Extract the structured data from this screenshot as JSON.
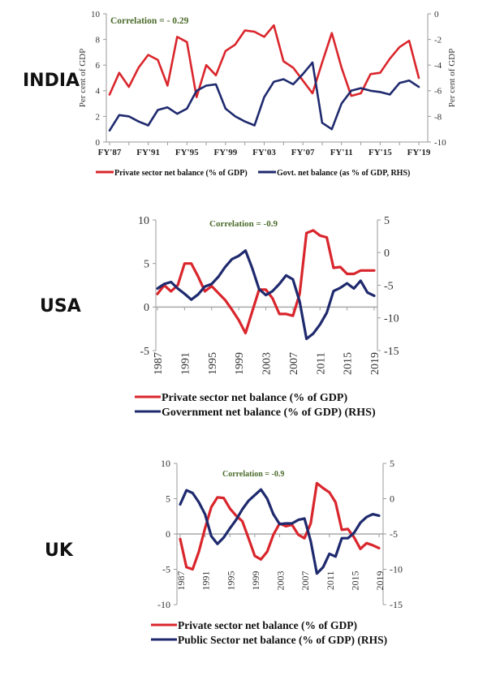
{
  "colors": {
    "private": "#d9262c",
    "govt": "#1f2a6e",
    "correlation": "#4a6b2a"
  },
  "chart_data": [
    {
      "id": "india",
      "type": "line",
      "country": "INDIA",
      "title": "Correlation = - 0.29",
      "x_tick_labels": [
        "FY'87",
        "FY'91",
        "FY'95",
        "FY'99",
        "FY'03",
        "FY'07",
        "FY'11",
        "FY'15",
        "FY'19"
      ],
      "x": [
        "FY'87",
        "FY'88",
        "FY'89",
        "FY'90",
        "FY'91",
        "FY'92",
        "FY'93",
        "FY'94",
        "FY'95",
        "FY'96",
        "FY'97",
        "FY'98",
        "FY'99",
        "FY'00",
        "FY'01",
        "FY'02",
        "FY'03",
        "FY'04",
        "FY'05",
        "FY'06",
        "FY'07",
        "FY'08",
        "FY'09",
        "FY'10",
        "FY'11",
        "FY'12",
        "FY'13",
        "FY'14",
        "FY'15",
        "FY'16",
        "FY'17",
        "FY'18",
        "FY'19"
      ],
      "ylabel": "Per cent of GDP",
      "y2label": "Per cent of GDP",
      "ylim": [
        0,
        10
      ],
      "y_ticks": [
        0,
        2,
        4,
        6,
        8,
        10
      ],
      "y2lim": [
        -10,
        0
      ],
      "y2_ticks": [
        -10,
        -8,
        -6,
        -4,
        -2,
        0
      ],
      "legend_position": "bottom",
      "series": [
        {
          "name": "Private sector net balance (% of GDP)",
          "axis": "left",
          "values": [
            3.7,
            5.4,
            4.3,
            5.8,
            6.8,
            6.4,
            4.4,
            8.2,
            7.8,
            3.5,
            6.0,
            5.2,
            7.1,
            7.6,
            8.7,
            8.6,
            8.2,
            9.1,
            6.3,
            5.8,
            4.8,
            3.8,
            6.2,
            8.5,
            5.8,
            3.6,
            3.8,
            5.3,
            5.4,
            6.5,
            7.4,
            7.9,
            5.0
          ]
        },
        {
          "name": "Govt. net balance (as % of GDP, RHS)",
          "axis": "right",
          "values": [
            -9.1,
            -7.9,
            -8.0,
            -8.4,
            -8.7,
            -7.5,
            -7.3,
            -7.8,
            -7.4,
            -6.0,
            -5.6,
            -5.5,
            -7.4,
            -8.0,
            -8.4,
            -8.7,
            -6.5,
            -5.3,
            -5.1,
            -5.5,
            -4.7,
            -3.8,
            -8.5,
            -9.0,
            -7.0,
            -6.0,
            -5.8,
            -6.0,
            -6.1,
            -6.3,
            -5.4,
            -5.2,
            -5.7
          ]
        }
      ]
    },
    {
      "id": "usa",
      "type": "line",
      "country": "USA",
      "title": "Correlation = -0.9",
      "x_tick_labels": [
        "1987",
        "1991",
        "1995",
        "1999",
        "2003",
        "2007",
        "2011",
        "2015",
        "2019"
      ],
      "x": [
        1987,
        1988,
        1989,
        1990,
        1991,
        1992,
        1993,
        1994,
        1995,
        1996,
        1997,
        1998,
        1999,
        2000,
        2001,
        2002,
        2003,
        2004,
        2005,
        2006,
        2007,
        2008,
        2009,
        2010,
        2011,
        2012,
        2013,
        2014,
        2015,
        2016,
        2017,
        2018,
        2019
      ],
      "ylim": [
        -5,
        10
      ],
      "y_ticks": [
        -5,
        0,
        5,
        10
      ],
      "y2lim": [
        -15,
        5
      ],
      "y2_ticks": [
        -15,
        -10,
        -5,
        0,
        5
      ],
      "legend_position": "bottom",
      "series": [
        {
          "name": "Private sector net balance (% of GDP)",
          "axis": "left",
          "values": [
            1.5,
            2.5,
            1.8,
            2.5,
            5.0,
            5.0,
            3.5,
            1.8,
            2.4,
            1.6,
            0.8,
            -0.3,
            -1.5,
            -3.0,
            -0.5,
            2.0,
            2.0,
            1.0,
            -0.8,
            -0.8,
            -1.0,
            1.5,
            8.5,
            8.8,
            8.2,
            8.0,
            4.5,
            4.6,
            3.8,
            3.8,
            4.2,
            4.2,
            4.2
          ]
        },
        {
          "name": "Government net balance (% of GDP) (RHS)",
          "axis": "right",
          "values": [
            -5.5,
            -4.8,
            -4.5,
            -5.5,
            -6.3,
            -7.2,
            -6.4,
            -5.2,
            -4.8,
            -3.7,
            -2.2,
            -1.0,
            -0.5,
            0.3,
            -2.4,
            -5.6,
            -6.5,
            -5.9,
            -4.8,
            -3.5,
            -4.1,
            -7.5,
            -13.2,
            -12.4,
            -11.0,
            -9.2,
            -5.9,
            -5.4,
            -4.7,
            -5.5,
            -4.3,
            -6.1,
            -6.6
          ]
        }
      ]
    },
    {
      "id": "uk",
      "type": "line",
      "country": "UK",
      "title": "Correlation = -0.9",
      "x_tick_labels": [
        "1987",
        "1991",
        "1995",
        "1999",
        "2003",
        "2007",
        "2011",
        "2015",
        "2019"
      ],
      "x": [
        1987,
        1988,
        1989,
        1990,
        1991,
        1992,
        1993,
        1994,
        1995,
        1996,
        1997,
        1998,
        1999,
        2000,
        2001,
        2002,
        2003,
        2004,
        2005,
        2006,
        2007,
        2008,
        2009,
        2010,
        2011,
        2012,
        2013,
        2014,
        2015,
        2016,
        2017,
        2018,
        2019
      ],
      "ylim": [
        -10,
        10
      ],
      "y_ticks": [
        -10,
        -5,
        0,
        5,
        10
      ],
      "y2lim": [
        -15,
        5
      ],
      "y2_ticks": [
        -15,
        -10,
        -5,
        0,
        5
      ],
      "legend_position": "bottom",
      "series": [
        {
          "name": "Private sector net balance (% of GDP)",
          "axis": "left",
          "values": [
            -0.7,
            -4.7,
            -5.0,
            -2.5,
            0.8,
            3.8,
            5.2,
            5.1,
            3.6,
            2.6,
            1.8,
            -0.6,
            -3.1,
            -3.6,
            -2.5,
            -0.1,
            1.5,
            1.1,
            1.3,
            -0.1,
            -0.6,
            1.5,
            7.2,
            6.5,
            5.9,
            4.5,
            0.6,
            0.7,
            -0.5,
            -2.1,
            -1.3,
            -1.6,
            -2.0
          ]
        },
        {
          "name": "Public Sector net balance (% of GDP) (RHS)",
          "axis": "right",
          "values": [
            -0.8,
            1.2,
            0.8,
            -0.5,
            -2.2,
            -5.3,
            -6.4,
            -5.5,
            -4.2,
            -3.0,
            -1.5,
            -0.3,
            0.5,
            1.3,
            0.0,
            -2.2,
            -3.6,
            -3.5,
            -3.5,
            -3.0,
            -2.8,
            -6.0,
            -10.6,
            -9.7,
            -7.8,
            -8.2,
            -5.6,
            -5.6,
            -4.8,
            -3.4,
            -2.6,
            -2.2,
            -2.4
          ]
        }
      ]
    }
  ]
}
